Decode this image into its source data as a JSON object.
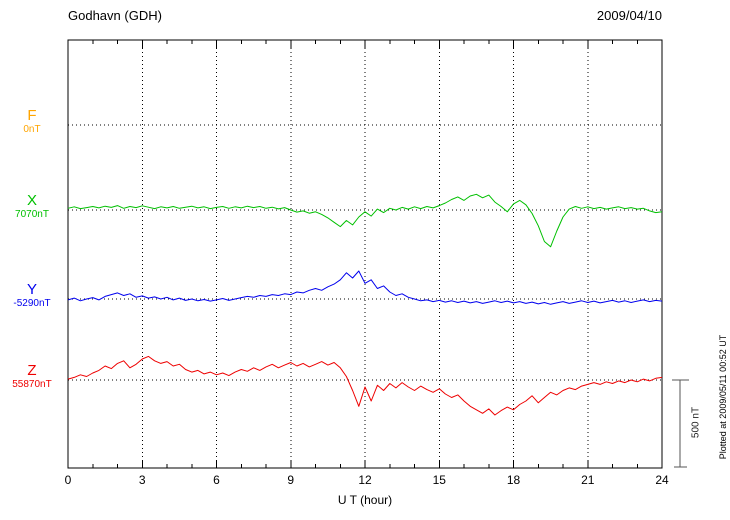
{
  "plotted_at_note": "Plotted at 2009/05/11 00:52 UT",
  "chart_data": {
    "type": "line",
    "title": "Godhavn (GDH)",
    "date": "2009/04/10",
    "xlabel": "U T (hour)",
    "x_range": [
      0,
      24
    ],
    "x_ticks": [
      0,
      3,
      6,
      9,
      12,
      15,
      18,
      21,
      24
    ],
    "sample_interval_hours": 0.25,
    "scale_bar": {
      "label": "500 nT",
      "value_nT": 500
    },
    "series": [
      {
        "name": "F",
        "baseline_label": "0nT",
        "baseline_nT": 0,
        "color": "#FFA500",
        "offsets_nT": []
      },
      {
        "name": "X",
        "baseline_label": "7070nT",
        "baseline_nT": 7070,
        "color": "#00C000",
        "offsets_nT": [
          10,
          18,
          8,
          14,
          20,
          12,
          22,
          15,
          25,
          10,
          20,
          14,
          24,
          16,
          8,
          18,
          12,
          20,
          10,
          16,
          22,
          12,
          18,
          8,
          15,
          20,
          10,
          18,
          12,
          22,
          14,
          20,
          10,
          16,
          6,
          14,
          0,
          -12,
          -5,
          -18,
          -10,
          -25,
          -45,
          -70,
          -95,
          -60,
          -85,
          -40,
          -10,
          -35,
          5,
          -15,
          10,
          0,
          15,
          5,
          18,
          8,
          20,
          12,
          25,
          40,
          60,
          75,
          55,
          80,
          90,
          70,
          85,
          45,
          20,
          -10,
          35,
          55,
          30,
          -20,
          -90,
          -180,
          -210,
          -120,
          -40,
          5,
          20,
          10,
          18,
          8,
          15,
          5,
          12,
          18,
          8,
          14,
          5,
          10,
          -5,
          -15,
          -10
        ]
      },
      {
        "name": "Y",
        "baseline_label": "-5290nT",
        "baseline_nT": -5290,
        "color": "#0000EE",
        "offsets_nT": [
          -5,
          5,
          -10,
          0,
          8,
          -5,
          15,
          25,
          35,
          20,
          30,
          10,
          18,
          5,
          12,
          0,
          10,
          -5,
          5,
          -8,
          0,
          -10,
          -3,
          -12,
          -5,
          3,
          -8,
          0,
          8,
          15,
          10,
          20,
          15,
          25,
          20,
          30,
          25,
          40,
          35,
          50,
          60,
          50,
          70,
          85,
          110,
          150,
          120,
          160,
          90,
          110,
          60,
          75,
          40,
          20,
          30,
          10,
          0,
          -10,
          -5,
          -15,
          -8,
          -18,
          -10,
          -20,
          -12,
          -22,
          -15,
          -25,
          -18,
          -10,
          -20,
          -12,
          -22,
          -15,
          -25,
          -18,
          -28,
          -20,
          -30,
          -22,
          -15,
          -25,
          -18,
          -10,
          -20,
          -12,
          -22,
          -15,
          -8,
          -18,
          -10,
          -20,
          -12,
          -5,
          -15,
          -8,
          -12
        ]
      },
      {
        "name": "Z",
        "baseline_label": "55870nT",
        "baseline_nT": 55870,
        "color": "#EE0000",
        "offsets_nT": [
          5,
          15,
          30,
          20,
          40,
          55,
          80,
          65,
          95,
          110,
          70,
          90,
          120,
          135,
          110,
          95,
          105,
          80,
          90,
          60,
          45,
          55,
          35,
          45,
          30,
          40,
          25,
          45,
          60,
          50,
          70,
          55,
          75,
          90,
          70,
          85,
          100,
          80,
          95,
          75,
          90,
          105,
          85,
          100,
          70,
          20,
          -60,
          -150,
          -40,
          -120,
          -30,
          -60,
          -20,
          -45,
          -15,
          -40,
          -60,
          -35,
          -55,
          -70,
          -50,
          -80,
          -100,
          -85,
          -120,
          -150,
          -170,
          -190,
          -165,
          -200,
          -175,
          -155,
          -170,
          -140,
          -120,
          -90,
          -130,
          -100,
          -70,
          -85,
          -60,
          -45,
          -55,
          -35,
          -25,
          -15,
          -25,
          -10,
          -20,
          -5,
          -15,
          0,
          -10,
          5,
          -5,
          10,
          15
        ]
      }
    ]
  }
}
